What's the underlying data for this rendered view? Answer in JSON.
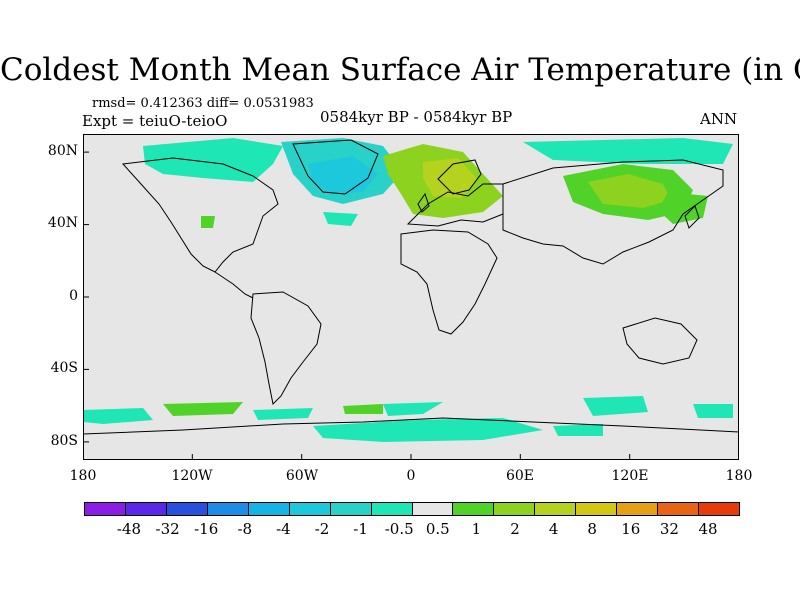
{
  "title": "Coldest Month Mean Surface Air Temperature (in C)",
  "stats": "rmsd= 0.412363  diff= 0.0531983",
  "expt": "Expt = teiuO-teioO",
  "period": "0584kyr BP - 0584kyr BP",
  "season": "ANN",
  "y_axis_labels": [
    "80N",
    "40N",
    "0",
    "40S",
    "80S"
  ],
  "x_axis_labels": [
    "180",
    "120W",
    "60W",
    "0",
    "60E",
    "120E",
    "180"
  ],
  "colorbar_labels": [
    "-48",
    "-32",
    "-16",
    "-8",
    "-4",
    "-2",
    "-1",
    "-0.5",
    "0.5",
    "1",
    "2",
    "4",
    "8",
    "16",
    "32",
    "48"
  ],
  "colorbar_colors": [
    "#8a1ee6",
    "#5a28e6",
    "#2850dc",
    "#1e8ce6",
    "#14b4e6",
    "#1ec8dc",
    "#28d2c8",
    "#1ee6b4",
    "#e6e6e6",
    "#50d228",
    "#8cd21e",
    "#b4d21e",
    "#d2c814",
    "#e6a014",
    "#e66414",
    "#e63c0a"
  ],
  "colors": {
    "ocean": "#e6e6e6",
    "cool_light": "#1ee6b4",
    "cool_mid": "#28d2c8",
    "cool_strong": "#1ec8dc",
    "warm_light": "#50d228",
    "warm_mid": "#8cd21e",
    "warm_strong": "#b4d21e"
  }
}
